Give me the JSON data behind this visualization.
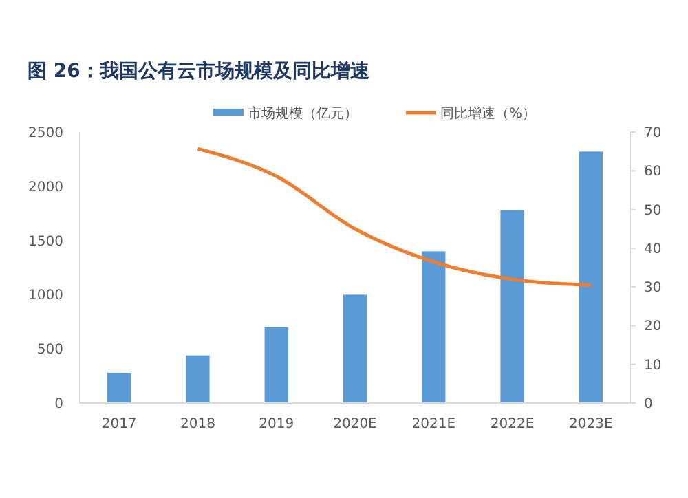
{
  "chart_data": {
    "type": "bar",
    "title": "图 26：我国公有云市场规模及同比增速",
    "categories": [
      "2017",
      "2018",
      "2019",
      "2020E",
      "2021E",
      "2022E",
      "2023E"
    ],
    "series": [
      {
        "name": "市场规模（亿元）",
        "color": "#5b9bd5",
        "values": [
          280,
          440,
          700,
          1000,
          1400,
          1780,
          2320
        ]
      },
      {
        "name": "同比增速（%）",
        "type": "line",
        "axis": "y2",
        "color": "#ed7d31",
        "values": [
          null,
          65.7,
          58.6,
          45,
          36.5,
          32,
          30.5
        ]
      }
    ],
    "ylim": [
      0,
      2500
    ],
    "yticks": [
      0,
      500,
      1000,
      1500,
      2000,
      2500
    ],
    "y2lim": [
      0,
      70
    ],
    "y2ticks": [
      0,
      10,
      20,
      30,
      40,
      50,
      60,
      70
    ],
    "legend": "top",
    "marker": "none",
    "grid": false
  }
}
